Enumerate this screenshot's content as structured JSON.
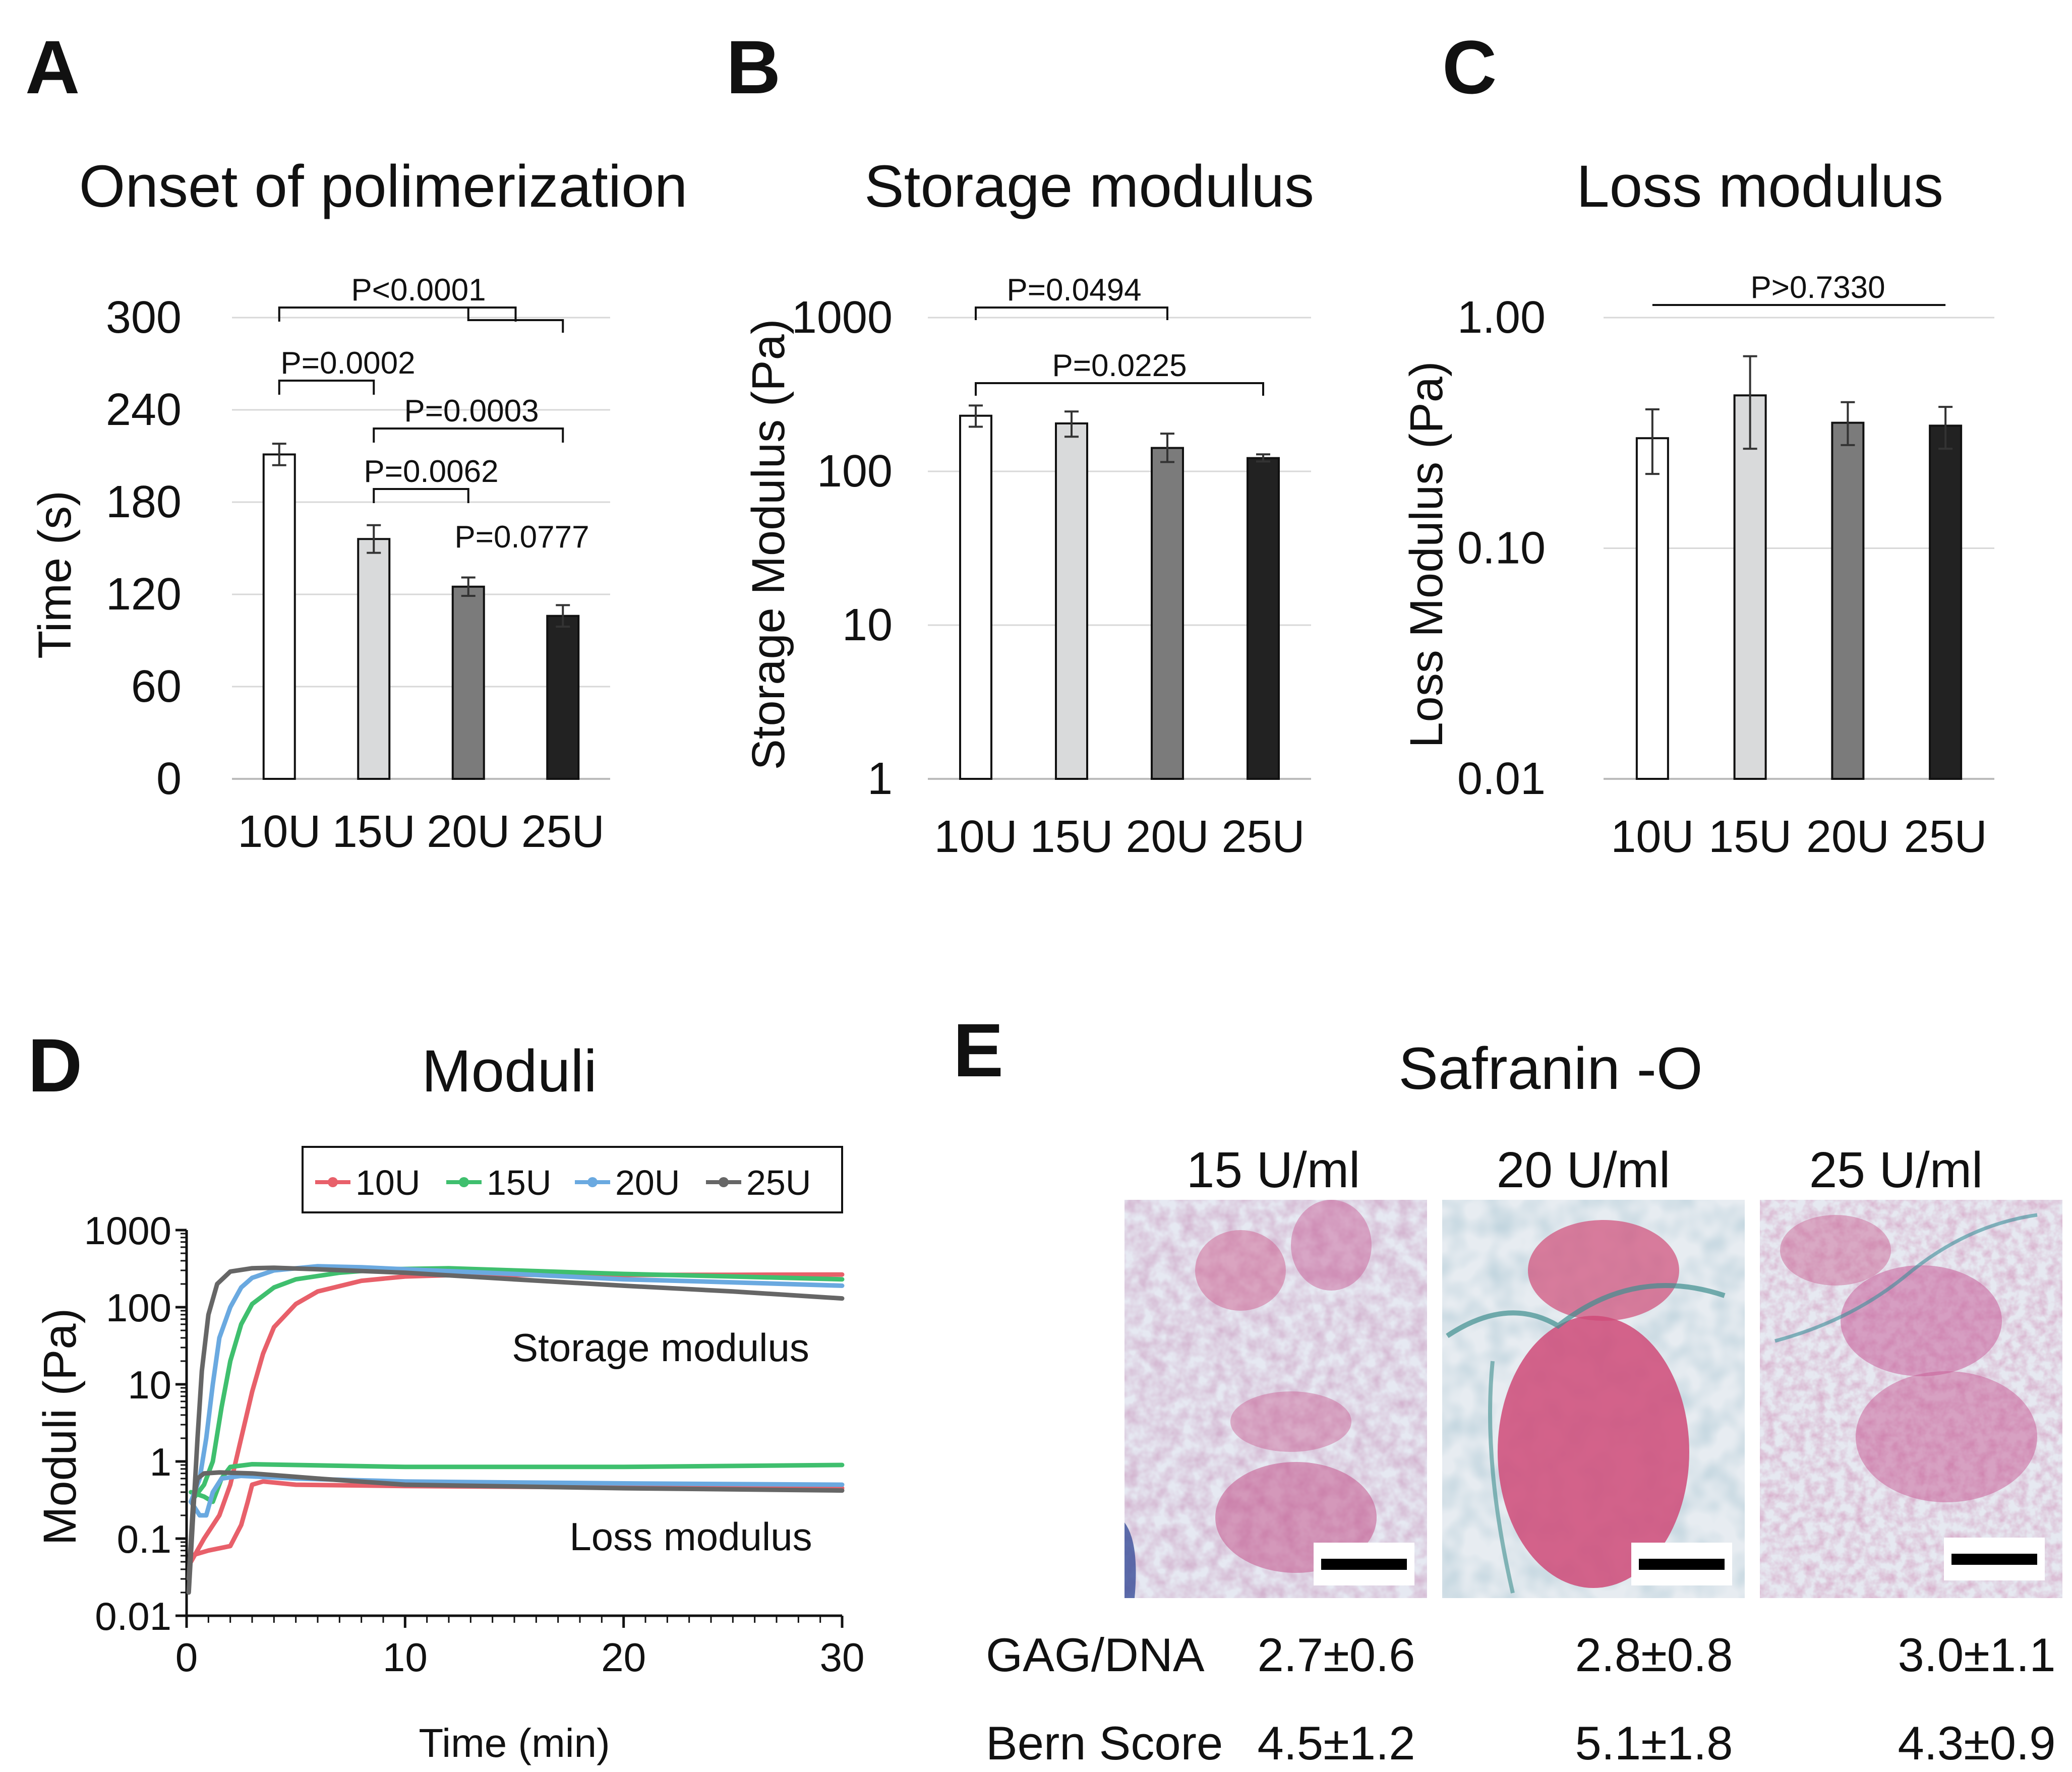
{
  "panels": {
    "A": {
      "letter": "A",
      "chart_data": {
        "type": "bar",
        "title": "Onset of polimerization",
        "ylabel": "Time (s)",
        "xlabel": "",
        "categories": [
          "10U",
          "15U",
          "20U",
          "25U"
        ],
        "values": [
          211,
          156,
          125,
          106
        ],
        "errors": [
          7,
          9,
          6,
          7
        ],
        "yscale": "linear",
        "ylim": [
          0,
          300
        ],
        "yticks": [
          0,
          60,
          120,
          180,
          240,
          300
        ],
        "colors": [
          "#ffffff",
          "#d9dadb",
          "#7b7b7b",
          "#222222"
        ],
        "grid": true,
        "comparisons": [
          {
            "label": "P<0.0001",
            "from": 0,
            "to": 2.5
          },
          {
            "label": "P=0.0002",
            "from": 0,
            "to": 1
          },
          {
            "label": "P=0.0003",
            "from": 1,
            "to": 3
          },
          {
            "label": "P=0.0062",
            "from": 1,
            "to": 2
          },
          {
            "label": "P=0.0777",
            "from": 2,
            "to": 3
          }
        ]
      }
    },
    "B": {
      "letter": "B",
      "chart_data": {
        "type": "bar",
        "title": "Storage modulus",
        "ylabel": "Storage Modulus (Pa)",
        "xlabel": "",
        "categories": [
          "10U",
          "15U",
          "20U",
          "25U"
        ],
        "values": [
          230,
          205,
          142,
          122
        ],
        "err_low": [
          195,
          168,
          115,
          116
        ],
        "err_high": [
          268,
          245,
          176,
          129
        ],
        "yscale": "log",
        "ylim": [
          1,
          1000
        ],
        "yticks": [
          1,
          10,
          100,
          1000
        ],
        "colors": [
          "#ffffff",
          "#d9dadb",
          "#7b7b7b",
          "#222222"
        ],
        "grid": true,
        "comparisons": [
          {
            "label": "P=0.0494",
            "from": 0,
            "to": 2
          },
          {
            "label": "P=0.0225",
            "from": 0,
            "to": 3
          }
        ]
      }
    },
    "C": {
      "letter": "C",
      "chart_data": {
        "type": "bar",
        "title": "Loss modulus",
        "ylabel": "Loss Modulus (Pa)",
        "xlabel": "",
        "categories": [
          "10U",
          "15U",
          "20U",
          "25U"
        ],
        "values": [
          0.3,
          0.46,
          0.35,
          0.34
        ],
        "err_low": [
          0.21,
          0.27,
          0.28,
          0.27
        ],
        "err_high": [
          0.4,
          0.68,
          0.43,
          0.41
        ],
        "yscale": "log",
        "ylim": [
          0.01,
          1.0
        ],
        "yticks": [
          0.01,
          0.1,
          1.0
        ],
        "ytick_labels": [
          "0.01",
          "0.10",
          "1.00"
        ],
        "colors": [
          "#ffffff",
          "#d9dadb",
          "#7b7b7b",
          "#222222"
        ],
        "grid": true,
        "comparisons": [
          {
            "label": "P>0.7330",
            "from": 0,
            "to": 3,
            "style": "line"
          }
        ]
      }
    },
    "D": {
      "letter": "D",
      "chart_data": {
        "type": "line",
        "title": "Moduli",
        "xlabel": "Time (min)",
        "ylabel": "Moduli (Pa)",
        "yscale": "log",
        "xlim": [
          0,
          30
        ],
        "ylim": [
          0.01,
          1000
        ],
        "xticks": [
          0,
          10,
          20,
          30
        ],
        "yticks": [
          0.01,
          0.1,
          1,
          10,
          100,
          1000
        ],
        "ytick_labels": [
          "0.01",
          "0.1",
          "1",
          "10",
          "100",
          "1000"
        ],
        "legend_position": "top-right",
        "annotations": [
          "Storage modulus",
          "Loss modulus"
        ],
        "series": [
          {
            "name": "10U",
            "color": "#e8606a",
            "storage": [
              [
                0.2,
                0.05
              ],
              [
                0.8,
                0.1
              ],
              [
                1.5,
                0.2
              ],
              [
                2.0,
                0.5
              ],
              [
                2.5,
                2
              ],
              [
                3.0,
                8
              ],
              [
                3.5,
                25
              ],
              [
                4,
                55
              ],
              [
                5,
                110
              ],
              [
                6,
                160
              ],
              [
                8,
                220
              ],
              [
                10,
                250
              ],
              [
                12,
                260
              ],
              [
                15,
                262
              ],
              [
                20,
                262
              ],
              [
                25,
                263
              ],
              [
                30,
                265
              ]
            ],
            "loss": [
              [
                0.2,
                0.06
              ],
              [
                1,
                0.07
              ],
              [
                2,
                0.08
              ],
              [
                2.5,
                0.15
              ],
              [
                2.8,
                0.3
              ],
              [
                3,
                0.5
              ],
              [
                3.5,
                0.55
              ],
              [
                5,
                0.5
              ],
              [
                10,
                0.48
              ],
              [
                20,
                0.46
              ],
              [
                30,
                0.45
              ]
            ]
          },
          {
            "name": "15U",
            "color": "#3fbf6e",
            "storage": [
              [
                0.2,
                0.3
              ],
              [
                0.8,
                0.5
              ],
              [
                1.2,
                1
              ],
              [
                1.6,
                5
              ],
              [
                2,
                20
              ],
              [
                2.5,
                60
              ],
              [
                3,
                110
              ],
              [
                4,
                180
              ],
              [
                5,
                230
              ],
              [
                7,
                280
              ],
              [
                9,
                310
              ],
              [
                12,
                320
              ],
              [
                15,
                300
              ],
              [
                20,
                270
              ],
              [
                25,
                250
              ],
              [
                30,
                230
              ]
            ],
            "loss": [
              [
                0.2,
                0.4
              ],
              [
                0.8,
                0.35
              ],
              [
                1.2,
                0.3
              ],
              [
                1.6,
                0.6
              ],
              [
                2,
                0.85
              ],
              [
                3,
                0.92
              ],
              [
                5,
                0.9
              ],
              [
                10,
                0.85
              ],
              [
                20,
                0.85
              ],
              [
                30,
                0.9
              ]
            ]
          },
          {
            "name": "20U",
            "color": "#6aa9e0",
            "storage": [
              [
                0.2,
                0.3
              ],
              [
                0.6,
                0.6
              ],
              [
                0.9,
                2
              ],
              [
                1.2,
                10
              ],
              [
                1.5,
                40
              ],
              [
                2,
                100
              ],
              [
                2.5,
                180
              ],
              [
                3,
                240
              ],
              [
                4,
                300
              ],
              [
                6,
                340
              ],
              [
                8,
                330
              ],
              [
                10,
                310
              ],
              [
                15,
                270
              ],
              [
                20,
                230
              ],
              [
                25,
                210
              ],
              [
                30,
                190
              ]
            ],
            "loss": [
              [
                0.2,
                0.3
              ],
              [
                0.6,
                0.2
              ],
              [
                0.9,
                0.2
              ],
              [
                1.2,
                0.4
              ],
              [
                1.6,
                0.6
              ],
              [
                2.5,
                0.65
              ],
              [
                5,
                0.6
              ],
              [
                10,
                0.55
              ],
              [
                20,
                0.52
              ],
              [
                30,
                0.5
              ]
            ]
          },
          {
            "name": "25U",
            "color": "#666666",
            "storage": [
              [
                0.1,
                0.02
              ],
              [
                0.3,
                0.2
              ],
              [
                0.5,
                2
              ],
              [
                0.7,
                15
              ],
              [
                1,
                80
              ],
              [
                1.4,
                200
              ],
              [
                2,
                290
              ],
              [
                3,
                320
              ],
              [
                4,
                325
              ],
              [
                6,
                310
              ],
              [
                10,
                280
              ],
              [
                15,
                230
              ],
              [
                20,
                190
              ],
              [
                25,
                160
              ],
              [
                30,
                130
              ]
            ],
            "loss": [
              [
                0.1,
                0.03
              ],
              [
                0.3,
                0.3
              ],
              [
                0.5,
                0.6
              ],
              [
                0.8,
                0.7
              ],
              [
                1.5,
                0.72
              ],
              [
                3,
                0.7
              ],
              [
                6,
                0.6
              ],
              [
                10,
                0.5
              ],
              [
                20,
                0.45
              ],
              [
                30,
                0.42
              ]
            ]
          }
        ]
      }
    },
    "E": {
      "letter": "E",
      "title": "Safranin -O",
      "images": [
        {
          "label": "15 U/ml"
        },
        {
          "label": "20 U/ml"
        },
        {
          "label": "25 U/ml"
        }
      ],
      "table": {
        "rows": [
          {
            "label": "GAG/DNA",
            "values": [
              "2.7±0.6",
              "2.8±0.8",
              "3.0±1.1"
            ]
          },
          {
            "label": "Bern Score",
            "values": [
              "4.5±1.2",
              "5.1±1.8",
              "4.3±0.9"
            ]
          }
        ]
      }
    }
  }
}
